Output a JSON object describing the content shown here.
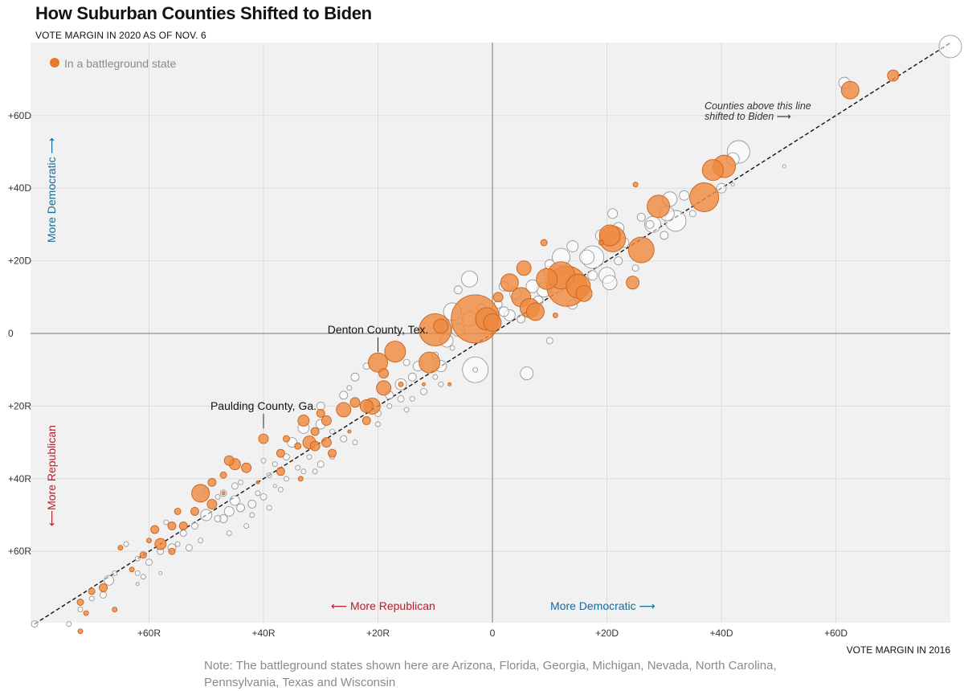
{
  "chart_data": {
    "type": "scatter",
    "title": "How Suburban Counties Shifted to Biden",
    "subtitle": "VOTE MARGIN IN 2020 AS OF NOV. 6",
    "xlabel": "VOTE MARGIN IN 2016",
    "ylabel": "VOTE MARGIN IN 2020",
    "xlim": [
      -80,
      80
    ],
    "ylim": [
      -80,
      80
    ],
    "x_ticks": [
      -60,
      -40,
      -20,
      0,
      20,
      40,
      60
    ],
    "x_tick_labels": [
      "+60R",
      "+40R",
      "+20R",
      "0",
      "+20D",
      "+40D",
      "+60D"
    ],
    "y_ticks": [
      -60,
      -40,
      -20,
      0,
      20,
      40,
      60
    ],
    "y_tick_labels": [
      "+60R",
      "+40R",
      "+20R",
      "0",
      "+20D",
      "+40D",
      "+60D"
    ],
    "legend": {
      "label": "In a battleground state",
      "color": "#e8782b"
    },
    "colors": {
      "battleground_fill": "#ee8a3f",
      "battleground_stroke": "#c9621c",
      "other_stroke": "#9a9a9a",
      "plot_bg": "#f1f1f1"
    },
    "direction_labels": {
      "x_left": "⟵ More Republican",
      "x_right": "More Democratic ⟶",
      "y_up": "More Democratic ⟶",
      "y_down": "⟵More Republican"
    },
    "annotation_line": {
      "line1": "Counties above this line",
      "line2": "shifted to Biden ⟶"
    },
    "callouts": [
      {
        "label": "Denton County, Tex.",
        "x": -20,
        "y": -8
      },
      {
        "label": "Paulding County, Ga.",
        "x": -40,
        "y": -29
      }
    ],
    "series": [
      {
        "name": "In a battleground state",
        "points": [
          [
            62.5,
            67,
            11
          ],
          [
            70,
            71,
            7
          ],
          [
            38.5,
            45,
            13
          ],
          [
            40.5,
            46,
            14
          ],
          [
            37,
            37.5,
            18
          ],
          [
            29,
            35,
            14
          ],
          [
            21,
            26,
            16
          ],
          [
            20.5,
            27,
            13
          ],
          [
            26,
            23,
            16
          ],
          [
            25,
            41,
            3
          ],
          [
            24.5,
            14,
            8
          ],
          [
            5.5,
            18,
            9
          ],
          [
            3,
            14,
            11
          ],
          [
            5,
            10,
            12
          ],
          [
            6.5,
            7,
            12
          ],
          [
            7.5,
            6,
            11
          ],
          [
            9.5,
            15,
            13
          ],
          [
            12,
            16,
            17
          ],
          [
            13,
            13,
            25
          ],
          [
            15,
            13,
            15
          ],
          [
            16,
            11,
            10
          ],
          [
            1,
            10,
            6
          ],
          [
            -1,
            4,
            14
          ],
          [
            -3,
            4,
            30
          ],
          [
            0,
            3,
            11
          ],
          [
            -10,
            1,
            20
          ],
          [
            -9,
            2,
            9
          ],
          [
            -20,
            -8,
            12
          ],
          [
            -17,
            -5,
            13
          ],
          [
            -11,
            -8,
            13
          ],
          [
            -19,
            -11,
            6
          ],
          [
            -19,
            -15,
            9
          ],
          [
            -22,
            -20,
            8
          ],
          [
            -24,
            -19,
            6
          ],
          [
            -21,
            -20,
            10
          ],
          [
            -26,
            -21,
            9
          ],
          [
            -29,
            -24,
            6
          ],
          [
            -30,
            -22,
            5
          ],
          [
            -31,
            -27,
            5
          ],
          [
            -32,
            -30,
            8
          ],
          [
            -31,
            -31,
            6
          ],
          [
            -33,
            -24,
            7
          ],
          [
            -34,
            -31,
            4
          ],
          [
            -36,
            -29,
            4
          ],
          [
            -40,
            -29,
            6
          ],
          [
            -37,
            -33,
            5
          ],
          [
            -37,
            -38,
            5
          ],
          [
            -29,
            -30,
            6
          ],
          [
            -28,
            -33,
            5
          ],
          [
            -45,
            -36,
            7
          ],
          [
            -43,
            -37,
            6
          ],
          [
            -46,
            -35,
            6
          ],
          [
            -47,
            -39,
            4
          ],
          [
            -49,
            -41,
            5
          ],
          [
            -51,
            -44,
            11
          ],
          [
            -49,
            -47,
            6
          ],
          [
            -52,
            -49,
            5
          ],
          [
            -54,
            -53,
            5
          ],
          [
            -55,
            -49,
            4
          ],
          [
            -56,
            -53,
            5
          ],
          [
            -58,
            -58,
            7
          ],
          [
            -59,
            -54,
            5
          ],
          [
            -56,
            -60,
            4
          ],
          [
            -60,
            -57,
            3
          ],
          [
            -61,
            -61,
            4
          ],
          [
            -65,
            -59,
            3
          ],
          [
            -63,
            -65,
            3
          ],
          [
            -68,
            -70,
            5
          ],
          [
            -70,
            -71,
            4
          ],
          [
            -72,
            -74,
            4
          ],
          [
            -66,
            -76,
            3
          ],
          [
            -71,
            -77,
            3
          ],
          [
            -72,
            -82,
            3
          ],
          [
            -33.5,
            -40,
            3
          ],
          [
            -25,
            -27,
            2
          ],
          [
            -12,
            -14,
            2
          ],
          [
            -7.5,
            -14,
            2
          ],
          [
            11,
            5,
            3
          ],
          [
            19,
            25,
            3
          ],
          [
            9,
            25,
            4
          ],
          [
            -22,
            -24,
            5
          ],
          [
            -47,
            -44,
            2
          ],
          [
            -41,
            -41,
            2
          ],
          [
            -16,
            -14,
            3
          ]
        ]
      },
      {
        "name": "Other counties",
        "points": [
          [
            80,
            79,
            14
          ],
          [
            61.5,
            69,
            7
          ],
          [
            43,
            50,
            14
          ],
          [
            42,
            48,
            8
          ],
          [
            51,
            46,
            2
          ],
          [
            40,
            40,
            6
          ],
          [
            33.5,
            38,
            6
          ],
          [
            31,
            37,
            9
          ],
          [
            32,
            31,
            13
          ],
          [
            30.5,
            33,
            9
          ],
          [
            28,
            30,
            10
          ],
          [
            30,
            27,
            5
          ],
          [
            27.5,
            30,
            5
          ],
          [
            26,
            32,
            5
          ],
          [
            21,
            33,
            6
          ],
          [
            22,
            29,
            7
          ],
          [
            19,
            27,
            7
          ],
          [
            17.5,
            21,
            14
          ],
          [
            14,
            24,
            7
          ],
          [
            12,
            21,
            11
          ],
          [
            16.5,
            21,
            9
          ],
          [
            20,
            16,
            10
          ],
          [
            20.5,
            14,
            9
          ],
          [
            17.5,
            16,
            6
          ],
          [
            10,
            19,
            6
          ],
          [
            10,
            17,
            7
          ],
          [
            11,
            14,
            13
          ],
          [
            9,
            12,
            9
          ],
          [
            7,
            13,
            8
          ],
          [
            4,
            11,
            7
          ],
          [
            2,
            13,
            6
          ],
          [
            -4,
            15,
            10
          ],
          [
            -7,
            6,
            11
          ],
          [
            -4,
            4,
            9
          ],
          [
            -6,
            1,
            8
          ],
          [
            -8,
            -2,
            8
          ],
          [
            -2,
            7,
            5
          ],
          [
            1,
            8,
            5
          ],
          [
            2,
            6,
            6
          ],
          [
            3,
            5,
            7
          ],
          [
            -3,
            -10,
            16
          ],
          [
            6,
            -11,
            8
          ],
          [
            10,
            -2,
            4
          ],
          [
            -9,
            -9,
            7
          ],
          [
            -13,
            -9,
            6
          ],
          [
            -14,
            -12,
            5
          ],
          [
            -16,
            -14,
            7
          ],
          [
            -18,
            -17,
            5
          ],
          [
            -24,
            -12,
            5
          ],
          [
            -26,
            -17,
            5
          ],
          [
            -30,
            -20,
            5
          ],
          [
            -30,
            -25,
            6
          ],
          [
            -33,
            -26,
            7
          ],
          [
            -35,
            -30,
            6
          ],
          [
            -36,
            -34,
            4
          ],
          [
            -38,
            -36,
            3
          ],
          [
            -39,
            -39,
            3
          ],
          [
            -40,
            -45,
            4
          ],
          [
            -42,
            -47,
            5
          ],
          [
            -44,
            -48,
            5
          ],
          [
            -45,
            -46,
            6
          ],
          [
            -46,
            -49,
            6
          ],
          [
            -47,
            -51,
            5
          ],
          [
            -48,
            -51,
            4
          ],
          [
            -50,
            -50,
            7
          ],
          [
            -52,
            -53,
            4
          ],
          [
            -54,
            -55,
            4
          ],
          [
            -56,
            -59,
            5
          ],
          [
            -58,
            -60,
            4
          ],
          [
            -60,
            -63,
            4
          ],
          [
            -62,
            -62,
            3
          ],
          [
            -62,
            -66,
            3
          ],
          [
            -67,
            -68,
            6
          ],
          [
            -68,
            -72,
            4
          ],
          [
            -70,
            -73,
            3
          ],
          [
            -72,
            -76,
            3
          ],
          [
            -74,
            -80,
            3
          ],
          [
            -80,
            -80,
            4
          ],
          [
            -25,
            -15,
            3
          ],
          [
            -30,
            -36,
            4
          ],
          [
            -10,
            -12,
            3
          ],
          [
            -22,
            -9,
            4
          ],
          [
            -18,
            -20,
            3
          ],
          [
            -32,
            -34,
            3
          ],
          [
            -36,
            -40,
            3
          ],
          [
            -26,
            -29,
            4
          ],
          [
            -9,
            -14,
            3
          ],
          [
            -12,
            -16,
            4
          ],
          [
            -3,
            -10,
            3
          ],
          [
            -7,
            -4,
            3
          ],
          [
            -10,
            -6,
            4
          ],
          [
            -15,
            -8,
            4
          ],
          [
            -16,
            -18,
            4
          ],
          [
            -20,
            -22,
            4
          ],
          [
            -34,
            -37,
            3
          ],
          [
            -37,
            -43,
            3
          ],
          [
            -39,
            -48,
            3
          ],
          [
            -42,
            -50,
            3
          ],
          [
            -43,
            -53,
            3
          ],
          [
            -51,
            -57,
            3
          ],
          [
            -53,
            -59,
            4
          ],
          [
            -55,
            -58,
            3
          ],
          [
            -28,
            -27,
            3
          ],
          [
            -24,
            -30,
            3
          ],
          [
            -15,
            -21,
            3
          ],
          [
            -31,
            -38,
            3
          ],
          [
            -44,
            -41,
            3
          ],
          [
            -48,
            -45,
            3
          ],
          [
            -50,
            -43,
            3
          ],
          [
            -57,
            -52,
            3
          ],
          [
            -64,
            -58,
            3
          ],
          [
            -66,
            -66,
            3
          ],
          [
            -61,
            -67,
            3
          ],
          [
            -6,
            12,
            5
          ],
          [
            22,
            20,
            5
          ],
          [
            25,
            18,
            4
          ],
          [
            14,
            8,
            6
          ],
          [
            5,
            4,
            5
          ],
          [
            -20,
            -25,
            3
          ],
          [
            -40,
            -35,
            3
          ],
          [
            -45,
            -42,
            4
          ],
          [
            -47,
            -44,
            4
          ],
          [
            42,
            41,
            2
          ],
          [
            35,
            33,
            4
          ],
          [
            23,
            25,
            6
          ],
          [
            8,
            9,
            6
          ],
          [
            -14,
            -18,
            3
          ],
          [
            -28,
            -34,
            3
          ],
          [
            -38,
            -42,
            2
          ],
          [
            -41,
            -44,
            3
          ],
          [
            -46,
            -55,
            3
          ],
          [
            -58,
            -66,
            2
          ],
          [
            -62,
            -69,
            2
          ],
          [
            -33,
            -38,
            3
          ]
        ]
      }
    ]
  }
}
